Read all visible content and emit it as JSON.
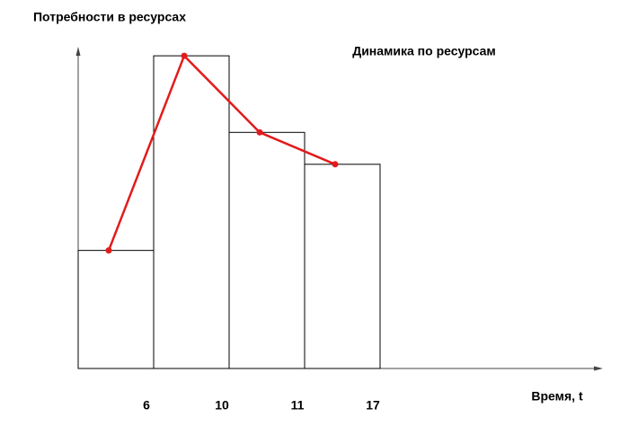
{
  "chart_data": {
    "type": "bar",
    "title": "Динамика по ресурсам",
    "y_label": "Потребности в ресурсах",
    "x_label": "Время, t",
    "categories": [
      "6",
      "10",
      "11",
      "17"
    ],
    "values": [
      37,
      98,
      74,
      64
    ],
    "bar_color": "#ffffff",
    "line_color": "#e31b1b",
    "ylim": [
      0,
      100
    ]
  }
}
